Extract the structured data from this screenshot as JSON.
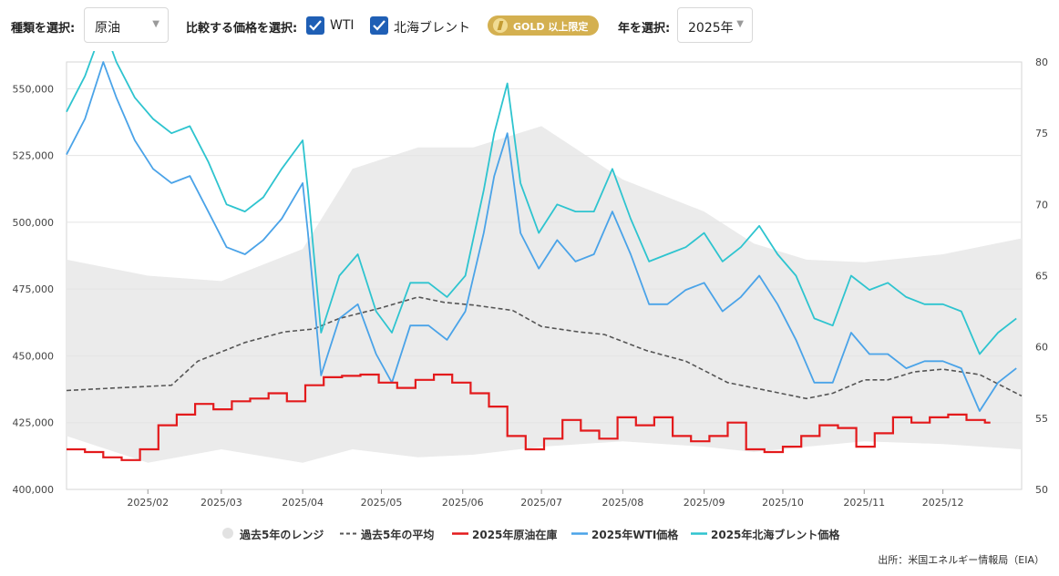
{
  "controls": {
    "type_label": "種類を選択:",
    "type_value": "原油",
    "compare_label": "比較する価格を選択:",
    "checkbox_wti": "WTI",
    "checkbox_brent": "北海ブレント",
    "gold_badge": "GOLD 以上限定",
    "year_label": "年を選択:",
    "year_value": "2025年"
  },
  "colors": {
    "range": "#ebebeb",
    "average": "#555555",
    "inventory": "#e31a1c",
    "wti": "#4aa3e8",
    "brent": "#2ec4cf",
    "checkbox": "#1f5fb5",
    "gold": "#d4b050"
  },
  "chart_data": {
    "type": "line",
    "x_ticks": [
      "2025/02",
      "2025/03",
      "2025/04",
      "2025/05",
      "2025/06",
      "2025/07",
      "2025/08",
      "2025/09",
      "2025/10",
      "2025/11",
      "2025/12"
    ],
    "y_left_ticks": [
      "400,000",
      "425,000",
      "450,000",
      "475,000",
      "500,000",
      "525,000",
      "550,000"
    ],
    "y_left_range": [
      400000,
      560000
    ],
    "y_right_ticks": [
      "50",
      "55",
      "60",
      "65",
      "70",
      "75",
      "80"
    ],
    "y_right_range": [
      50,
      80
    ],
    "x_range": [
      "2025-01-01",
      "2025-12-31"
    ],
    "grid": true,
    "legend_position": "bottom",
    "series": [
      {
        "name": "過去5年のレンジ",
        "axis": "left",
        "kind": "band",
        "x": [
          "2025-01-01",
          "2025-02-01",
          "2025-03-01",
          "2025-04-01",
          "2025-04-20",
          "2025-05-15",
          "2025-06-05",
          "2025-07-01",
          "2025-08-01",
          "2025-09-01",
          "2025-09-20",
          "2025-10-10",
          "2025-11-01",
          "2025-12-01",
          "2025-12-31"
        ],
        "low": [
          420000,
          410000,
          415000,
          410000,
          415000,
          412000,
          413000,
          416000,
          418000,
          416000,
          414000,
          416000,
          418000,
          417000,
          415000
        ],
        "high": [
          486000,
          480000,
          478000,
          490000,
          520000,
          528000,
          528000,
          536000,
          516000,
          504000,
          492000,
          486000,
          485000,
          488000,
          494000
        ]
      },
      {
        "name": "過去5年の平均",
        "axis": "left",
        "kind": "line",
        "x": [
          "2025-01-01",
          "2025-01-20",
          "2025-02-10",
          "2025-02-20",
          "2025-03-10",
          "2025-03-25",
          "2025-04-05",
          "2025-04-15",
          "2025-05-01",
          "2025-05-15",
          "2025-05-25",
          "2025-06-05",
          "2025-06-20",
          "2025-07-01",
          "2025-07-15",
          "2025-07-25",
          "2025-08-10",
          "2025-08-25",
          "2025-09-10",
          "2025-09-25",
          "2025-10-10",
          "2025-10-20",
          "2025-11-01",
          "2025-11-10",
          "2025-11-20",
          "2025-12-01",
          "2025-12-15",
          "2025-12-31"
        ],
        "y": [
          437000,
          438000,
          439000,
          448000,
          455000,
          459000,
          460000,
          464000,
          468000,
          472000,
          470000,
          469000,
          467000,
          461000,
          459000,
          458000,
          452000,
          448000,
          440000,
          437000,
          434000,
          436000,
          441000,
          441000,
          444000,
          445000,
          443000,
          435000
        ]
      },
      {
        "name": "2025年原油在庫",
        "axis": "left",
        "kind": "step",
        "x": [
          "2025-01-01",
          "2025-01-08",
          "2025-01-15",
          "2025-01-22",
          "2025-01-29",
          "2025-02-05",
          "2025-02-12",
          "2025-02-19",
          "2025-02-26",
          "2025-03-05",
          "2025-03-12",
          "2025-03-19",
          "2025-03-26",
          "2025-04-02",
          "2025-04-09",
          "2025-04-16",
          "2025-04-23",
          "2025-04-30",
          "2025-05-07",
          "2025-05-14",
          "2025-05-21",
          "2025-05-28",
          "2025-06-04",
          "2025-06-11",
          "2025-06-18",
          "2025-06-25",
          "2025-07-02",
          "2025-07-09",
          "2025-07-16",
          "2025-07-23",
          "2025-07-30",
          "2025-08-06",
          "2025-08-13",
          "2025-08-20",
          "2025-08-27",
          "2025-09-03",
          "2025-09-10",
          "2025-09-17",
          "2025-09-24",
          "2025-10-01",
          "2025-10-08",
          "2025-10-15",
          "2025-10-22",
          "2025-10-29",
          "2025-11-05",
          "2025-11-12",
          "2025-11-19",
          "2025-11-26",
          "2025-12-03",
          "2025-12-10",
          "2025-12-17"
        ],
        "y": [
          415000,
          414000,
          412000,
          411000,
          415000,
          424000,
          428000,
          432000,
          430000,
          433000,
          434000,
          436000,
          433000,
          439000,
          442000,
          442500,
          443000,
          440000,
          438000,
          441000,
          443000,
          440000,
          436000,
          431000,
          420000,
          415000,
          419000,
          426000,
          422000,
          419000,
          427000,
          424000,
          427000,
          420000,
          418000,
          420000,
          425000,
          415000,
          414000,
          416000,
          420000,
          424000,
          423000,
          416000,
          421000,
          427000,
          425000,
          427000,
          428000,
          426000,
          425000
        ]
      },
      {
        "name": "2025年WTI価格",
        "axis": "right",
        "kind": "line",
        "x": [
          "2025-01-01",
          "2025-01-08",
          "2025-01-15",
          "2025-01-20",
          "2025-01-27",
          "2025-02-03",
          "2025-02-10",
          "2025-02-17",
          "2025-02-24",
          "2025-03-03",
          "2025-03-10",
          "2025-03-17",
          "2025-03-24",
          "2025-04-01",
          "2025-04-03",
          "2025-04-08",
          "2025-04-15",
          "2025-04-22",
          "2025-04-29",
          "2025-05-05",
          "2025-05-12",
          "2025-05-19",
          "2025-05-26",
          "2025-06-02",
          "2025-06-09",
          "2025-06-13",
          "2025-06-18",
          "2025-06-23",
          "2025-06-30",
          "2025-07-07",
          "2025-07-14",
          "2025-07-21",
          "2025-07-28",
          "2025-08-04",
          "2025-08-11",
          "2025-08-18",
          "2025-08-25",
          "2025-09-01",
          "2025-09-08",
          "2025-09-15",
          "2025-09-22",
          "2025-09-29",
          "2025-10-06",
          "2025-10-13",
          "2025-10-20",
          "2025-10-27",
          "2025-11-03",
          "2025-11-10",
          "2025-11-17",
          "2025-11-24",
          "2025-12-01",
          "2025-12-08",
          "2025-12-15",
          "2025-12-22",
          "2025-12-29"
        ],
        "y": [
          73.5,
          76.0,
          80.0,
          77.5,
          74.5,
          72.5,
          71.5,
          72.0,
          69.5,
          67.0,
          66.5,
          67.5,
          69.0,
          71.5,
          68.0,
          58.0,
          62.0,
          63.0,
          59.5,
          57.5,
          61.5,
          61.5,
          60.5,
          62.5,
          68.0,
          72.0,
          75.0,
          68.0,
          65.5,
          67.5,
          66.0,
          66.5,
          69.5,
          66.5,
          63.0,
          63.0,
          64.0,
          64.5,
          62.5,
          63.5,
          65.0,
          63.0,
          60.5,
          57.5,
          57.5,
          61.0,
          59.5,
          59.5,
          58.5,
          59.0,
          59.0,
          58.5,
          55.5,
          57.5,
          58.5
        ]
      },
      {
        "name": "2025年北海ブレント価格",
        "axis": "right",
        "kind": "line",
        "x": [
          "2025-01-01",
          "2025-01-08",
          "2025-01-15",
          "2025-01-20",
          "2025-01-27",
          "2025-02-03",
          "2025-02-10",
          "2025-02-17",
          "2025-02-24",
          "2025-03-03",
          "2025-03-10",
          "2025-03-17",
          "2025-03-24",
          "2025-04-01",
          "2025-04-03",
          "2025-04-08",
          "2025-04-15",
          "2025-04-22",
          "2025-04-29",
          "2025-05-05",
          "2025-05-12",
          "2025-05-19",
          "2025-05-26",
          "2025-06-02",
          "2025-06-09",
          "2025-06-13",
          "2025-06-18",
          "2025-06-23",
          "2025-06-30",
          "2025-07-07",
          "2025-07-14",
          "2025-07-21",
          "2025-07-28",
          "2025-08-04",
          "2025-08-11",
          "2025-08-18",
          "2025-08-25",
          "2025-09-01",
          "2025-09-08",
          "2025-09-15",
          "2025-09-22",
          "2025-09-29",
          "2025-10-06",
          "2025-10-13",
          "2025-10-20",
          "2025-10-27",
          "2025-11-03",
          "2025-11-10",
          "2025-11-17",
          "2025-11-24",
          "2025-12-01",
          "2025-12-08",
          "2025-12-15",
          "2025-12-22",
          "2025-12-29"
        ],
        "y": [
          76.5,
          79.0,
          82.5,
          80.0,
          77.5,
          76.0,
          75.0,
          75.5,
          73.0,
          70.0,
          69.5,
          70.5,
          72.5,
          74.5,
          71.0,
          61.0,
          65.0,
          66.5,
          62.5,
          61.0,
          64.5,
          64.5,
          63.5,
          65.0,
          71.0,
          75.0,
          78.5,
          71.5,
          68.0,
          70.0,
          69.5,
          69.5,
          72.5,
          69.0,
          66.0,
          66.5,
          67.0,
          68.0,
          66.0,
          67.0,
          68.5,
          66.5,
          65.0,
          62.0,
          61.5,
          65.0,
          64.0,
          64.5,
          63.5,
          63.0,
          63.0,
          62.5,
          59.5,
          61.0,
          62.0
        ]
      }
    ],
    "source": "出所：米国エネルギー情報局（EIA）"
  }
}
